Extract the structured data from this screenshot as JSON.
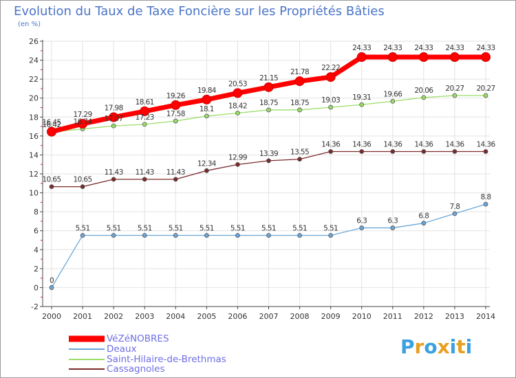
{
  "chart_data": {
    "type": "line",
    "title": "Evolution du Taux de Taxe Foncière sur les Propriétés Bâties",
    "unit_label": "(en %)",
    "xlabel": "",
    "ylabel": "",
    "ylim": [
      -2,
      26
    ],
    "y_ticks": [
      "-2",
      "0",
      "2",
      "4",
      "6",
      "8",
      "10",
      "12",
      "14",
      "16",
      "18",
      "20",
      "22",
      "24",
      "26"
    ],
    "categories": [
      "2000",
      "2001",
      "2002",
      "2003",
      "2004",
      "2005",
      "2006",
      "2007",
      "2008",
      "2009",
      "2010",
      "2011",
      "2012",
      "2013",
      "2014"
    ],
    "series": [
      {
        "name": "VéZéNOBRES",
        "color": "#ff0000",
        "values": [
          16.45,
          17.29,
          17.98,
          18.61,
          19.26,
          19.84,
          20.53,
          21.15,
          21.78,
          22.22,
          24.33,
          24.33,
          24.33,
          24.33,
          24.33
        ],
        "labels": [
          "16.45",
          "17.29",
          "17.98",
          "18.61",
          "19.26",
          "19.84",
          "20.53",
          "21.15",
          "21.78",
          "22.22",
          "24.33",
          "24.33",
          "24.33",
          "24.33",
          "24.33"
        ]
      },
      {
        "name": "Deaux",
        "color": "#6aa6d8",
        "values": [
          0,
          5.51,
          5.51,
          5.51,
          5.51,
          5.51,
          5.51,
          5.51,
          5.51,
          5.51,
          6.3,
          6.3,
          6.8,
          7.8,
          8.8
        ],
        "labels": [
          "0",
          "5.51",
          "5.51",
          "5.51",
          "5.51",
          "5.51",
          "5.51",
          "5.51",
          "5.51",
          "5.51",
          "6.3",
          "6.3",
          "6.8",
          "7.8",
          "8.8"
        ]
      },
      {
        "name": "Saint-Hilaire-de-Brethmas",
        "color": "#99dd66",
        "values": [
          16.42,
          16.74,
          17.07,
          17.23,
          17.58,
          18.1,
          18.42,
          18.75,
          18.75,
          19.03,
          19.31,
          19.66,
          20.06,
          20.27,
          20.27
        ],
        "labels": [
          "16.42",
          "16.74",
          "17.07",
          "17.23",
          "17.58",
          "18.1",
          "18.42",
          "18.75",
          "18.75",
          "19.03",
          "19.31",
          "19.66",
          "20.06",
          "20.27",
          "20.27"
        ]
      },
      {
        "name": "Cassagnoles",
        "color": "#7a2a2a",
        "values": [
          10.65,
          10.65,
          11.43,
          11.43,
          11.43,
          12.34,
          12.99,
          13.39,
          13.55,
          14.36,
          14.36,
          14.36,
          14.36,
          14.36,
          14.36
        ],
        "labels": [
          "10.65",
          "10.65",
          "11.43",
          "11.43",
          "11.43",
          "12.34",
          "12.99",
          "13.39",
          "13.55",
          "14.36",
          "14.36",
          "14.36",
          "14.36",
          "14.36",
          "14.36"
        ]
      }
    ],
    "legend_position": "bottom-left"
  },
  "logo": {
    "letters": [
      "P",
      "r",
      "o",
      "x",
      "i",
      "t",
      "i"
    ],
    "colors": [
      "#3aa0e0",
      "#e8a020",
      "#3aa0e0",
      "#e8a020",
      "#3aa0e0",
      "#e8a020",
      "#3aa0e0"
    ]
  }
}
